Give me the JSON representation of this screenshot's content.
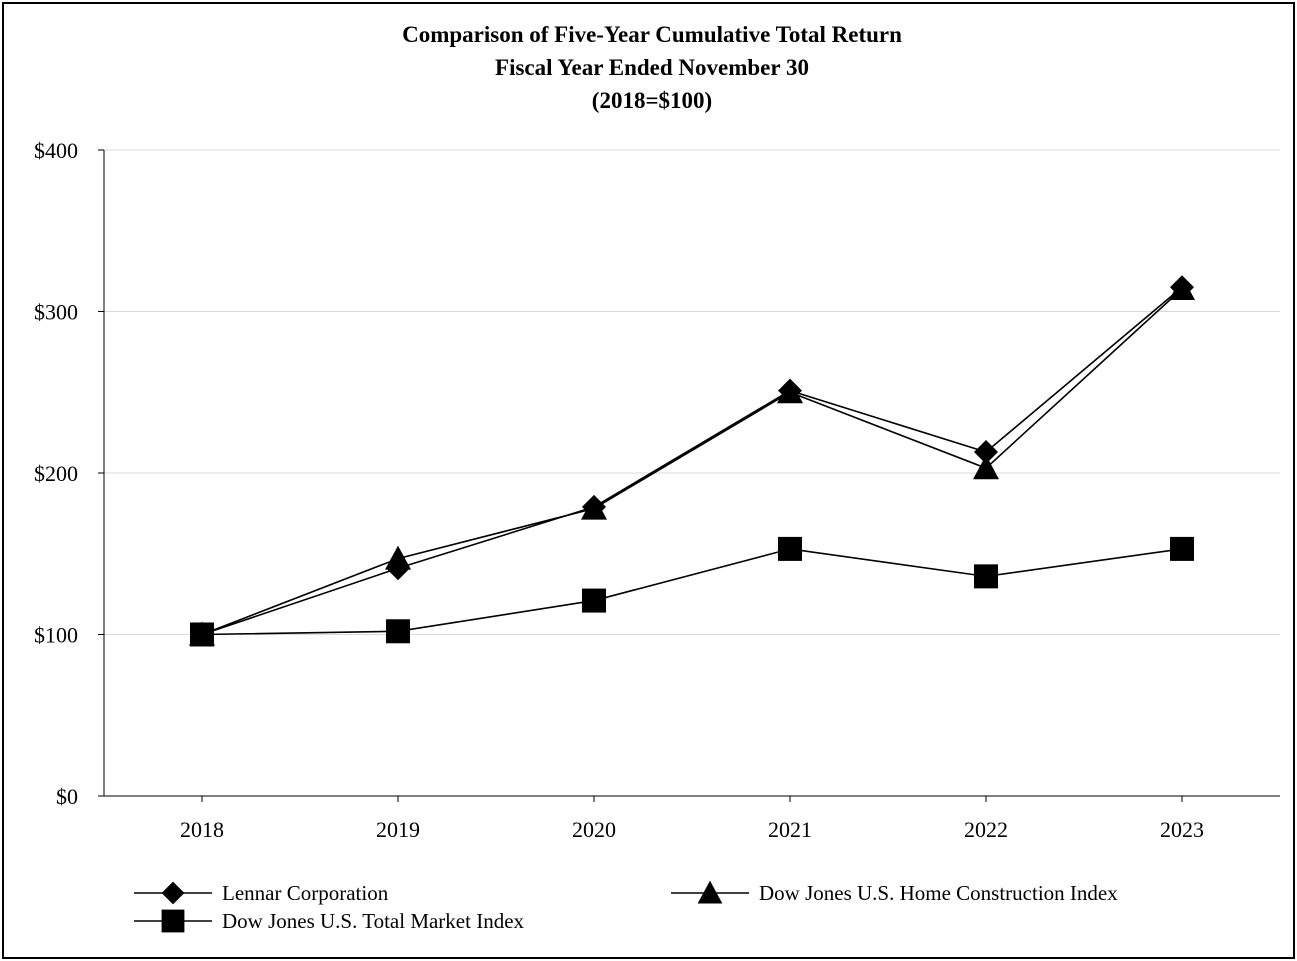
{
  "chart_data": {
    "type": "line",
    "title": "Comparison of Five-Year Cumulative Total Return",
    "subtitle_lines": [
      "Fiscal Year Ended November 30",
      "(2018=$100)"
    ],
    "xlabel": "",
    "ylabel": "",
    "categories": [
      "2018",
      "2019",
      "2020",
      "2021",
      "2022",
      "2023"
    ],
    "ylim": [
      0,
      400
    ],
    "yticks": [
      0,
      100,
      200,
      300,
      400
    ],
    "ytick_labels": [
      "$0",
      "$100",
      "$200",
      "$300",
      "$400"
    ],
    "grid": true,
    "legend_position": "bottom",
    "series": [
      {
        "name": "Lennar Corporation",
        "marker": "diamond",
        "values": [
          100,
          141,
          179,
          251,
          213,
          315
        ]
      },
      {
        "name": "Dow Jones U.S. Home Construction Index",
        "marker": "triangle",
        "values": [
          100,
          147,
          178,
          250,
          203,
          314
        ]
      },
      {
        "name": "Dow Jones U.S. Total Market Index",
        "marker": "square",
        "values": [
          100,
          102,
          121,
          153,
          136,
          153
        ]
      }
    ],
    "colors": {
      "line": "#000000",
      "grid": "#d9d9d9"
    }
  }
}
